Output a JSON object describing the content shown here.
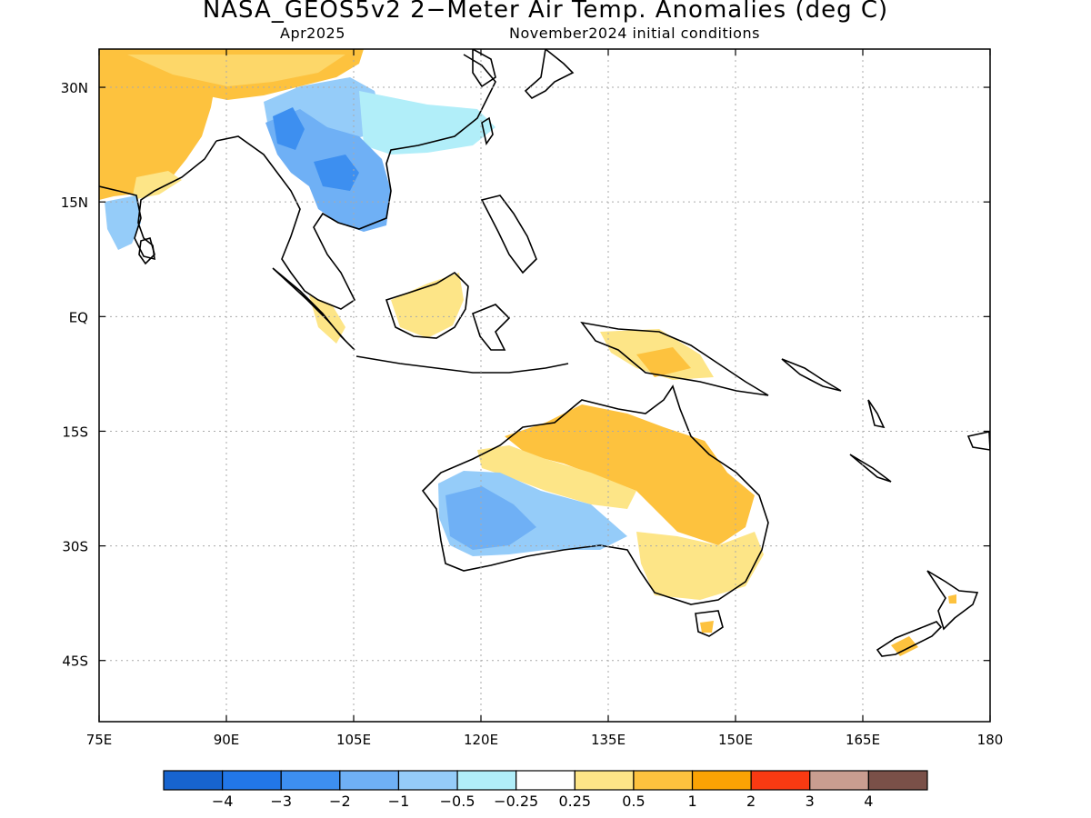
{
  "header": {
    "title": "NASA_GEOS5v2 2−Meter Air Temp. Anomalies (deg C)",
    "valid_month": "Apr2025",
    "init_conditions": "November2024 initial conditions"
  },
  "map": {
    "lon_range": [
      75,
      180
    ],
    "lat_range": [
      -53,
      35
    ],
    "lat_ticks": [
      {
        "value": 30,
        "label": "30N"
      },
      {
        "value": 15,
        "label": "15N"
      },
      {
        "value": 0,
        "label": "EQ"
      },
      {
        "value": -15,
        "label": "15S"
      },
      {
        "value": -30,
        "label": "30S"
      },
      {
        "value": -45,
        "label": "45S"
      }
    ],
    "lon_ticks": [
      {
        "value": 75,
        "label": "75E"
      },
      {
        "value": 90,
        "label": "90E"
      },
      {
        "value": 105,
        "label": "105E"
      },
      {
        "value": 120,
        "label": "120E"
      },
      {
        "value": 135,
        "label": "135E"
      },
      {
        "value": 150,
        "label": "150E"
      },
      {
        "value": 165,
        "label": "165E"
      },
      {
        "value": 180,
        "label": "180"
      }
    ],
    "grid": "dotted"
  },
  "colorbar": {
    "colors": [
      "#1764cf",
      "#2277e8",
      "#3d8ff0",
      "#6fb0f5",
      "#95ccf9",
      "#b1eef9",
      "#ffffff",
      "#fde587",
      "#fdc23e",
      "#fba304",
      "#f93a12",
      "#c99d90",
      "#7a5048"
    ],
    "labels": [
      "−4",
      "−3",
      "−2",
      "−1",
      "−0.5",
      "−0.25",
      "0.25",
      "0.5",
      "1",
      "2",
      "3",
      "4"
    ]
  },
  "anomaly_regions": [
    {
      "name": "india",
      "level": "1",
      "color": "#fdc23e",
      "lon": [
        75,
        89
      ],
      "lat": [
        17,
        35
      ]
    },
    {
      "name": "tibet",
      "level": "0.5-1",
      "color": "#fdc23e",
      "lon": [
        82,
        96
      ],
      "lat": [
        28,
        35
      ]
    },
    {
      "name": "southwest-india",
      "level": "-1",
      "color": "#95ccf9",
      "lon": [
        76,
        81
      ],
      "lat": [
        7,
        15
      ]
    },
    {
      "name": "southwest-china",
      "level": "-0.5",
      "color": "#95ccf9",
      "lon": [
        96,
        107
      ],
      "lat": [
        22,
        32
      ]
    },
    {
      "name": "myanmar-thailand-laos",
      "level": "-2",
      "color": "#6fb0f5",
      "lon": [
        96,
        107
      ],
      "lat": [
        13,
        27
      ]
    },
    {
      "name": "southeast-china",
      "level": "-0.25",
      "color": "#b1eef9",
      "lon": [
        106,
        118
      ],
      "lat": [
        22,
        29
      ]
    },
    {
      "name": "borneo",
      "level": "0.5",
      "color": "#fde587",
      "lon": [
        110,
        117
      ],
      "lat": [
        -2,
        3
      ]
    },
    {
      "name": "new-guinea",
      "level": "0.5",
      "color": "#fde587",
      "lon": [
        131,
        147
      ],
      "lat": [
        -8,
        -2
      ]
    },
    {
      "name": "north-australia",
      "level": "1",
      "color": "#fdc23e",
      "lon": [
        123,
        146
      ],
      "lat": [
        -24,
        -14
      ]
    },
    {
      "name": "east-australia",
      "level": "0.5",
      "color": "#fde587",
      "lon": [
        140,
        153
      ],
      "lat": [
        -38,
        -24
      ]
    },
    {
      "name": "west-australia",
      "level": "-1",
      "color": "#6fb0f5",
      "lon": [
        114,
        129
      ],
      "lat": [
        -33,
        -21
      ]
    },
    {
      "name": "new-zealand-south",
      "level": "1",
      "color": "#fdc23e",
      "lon": [
        168,
        172
      ],
      "lat": [
        -46,
        -44
      ]
    }
  ]
}
